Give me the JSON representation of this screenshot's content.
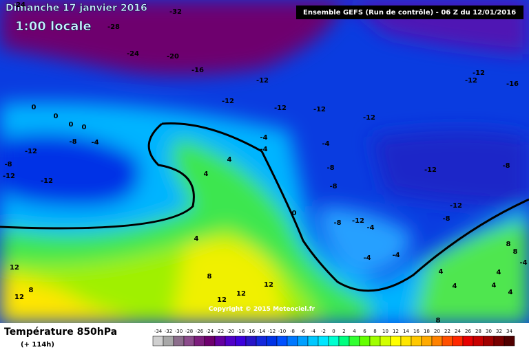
{
  "header": {
    "date": "Dimanche 17 janvier 2016",
    "time": "1:00 locale",
    "run": "Ensemble GEFS  (Run de contrôle)  - 06 Z du 12/01/2016"
  },
  "map": {
    "labels": [
      "-24",
      "-32",
      "-28",
      "-24",
      "-20",
      "-16",
      "-12",
      "-12",
      "-12",
      "-12",
      "-12",
      "-12",
      "-12",
      "-16",
      "0",
      "0",
      "0",
      "0",
      "-8",
      "-4",
      "-12",
      "-8",
      "-12",
      "-12",
      "-4",
      "-4",
      "-4",
      "4",
      "4",
      "-8",
      "-8",
      "-12",
      "-8",
      "-12",
      "0",
      "-8",
      "-12",
      "-4",
      "-8",
      "4",
      "-4",
      "-4",
      "8",
      "8",
      "-4",
      "12",
      "8",
      "4",
      "4",
      "12",
      "12",
      "12",
      "8",
      "4",
      "4",
      "4",
      "12",
      "8"
    ],
    "copyright": "Copyright © 2015 Meteociel.fr"
  },
  "footer": {
    "title": "Température 850hPa",
    "lead": "(+ 114h)"
  },
  "legend": {
    "values": [
      -34,
      -32,
      -30,
      -28,
      -26,
      -24,
      -22,
      -20,
      -18,
      -16,
      -14,
      -12,
      -10,
      -8,
      -6,
      -4,
      -2,
      0,
      2,
      4,
      6,
      8,
      10,
      12,
      14,
      16,
      18,
      20,
      22,
      24,
      26,
      28,
      30,
      32,
      34
    ],
    "colors": [
      "#d0d0d0",
      "#a8a8a8",
      "#8c6e8c",
      "#8c4c8c",
      "#7d1e7d",
      "#6e006e",
      "#6400a0",
      "#5000c8",
      "#3c00dc",
      "#2814c8",
      "#1428dc",
      "#0032e6",
      "#0050ff",
      "#0078ff",
      "#00a0ff",
      "#00c8ff",
      "#00e6ff",
      "#00ffd0",
      "#00ff80",
      "#32ff32",
      "#64ff00",
      "#a0ff00",
      "#d2ff00",
      "#ffff00",
      "#ffe600",
      "#ffc800",
      "#ffaa00",
      "#ff8200",
      "#ff5000",
      "#ff2800",
      "#e60000",
      "#c80000",
      "#a00000",
      "#780000",
      "#500000"
    ]
  }
}
